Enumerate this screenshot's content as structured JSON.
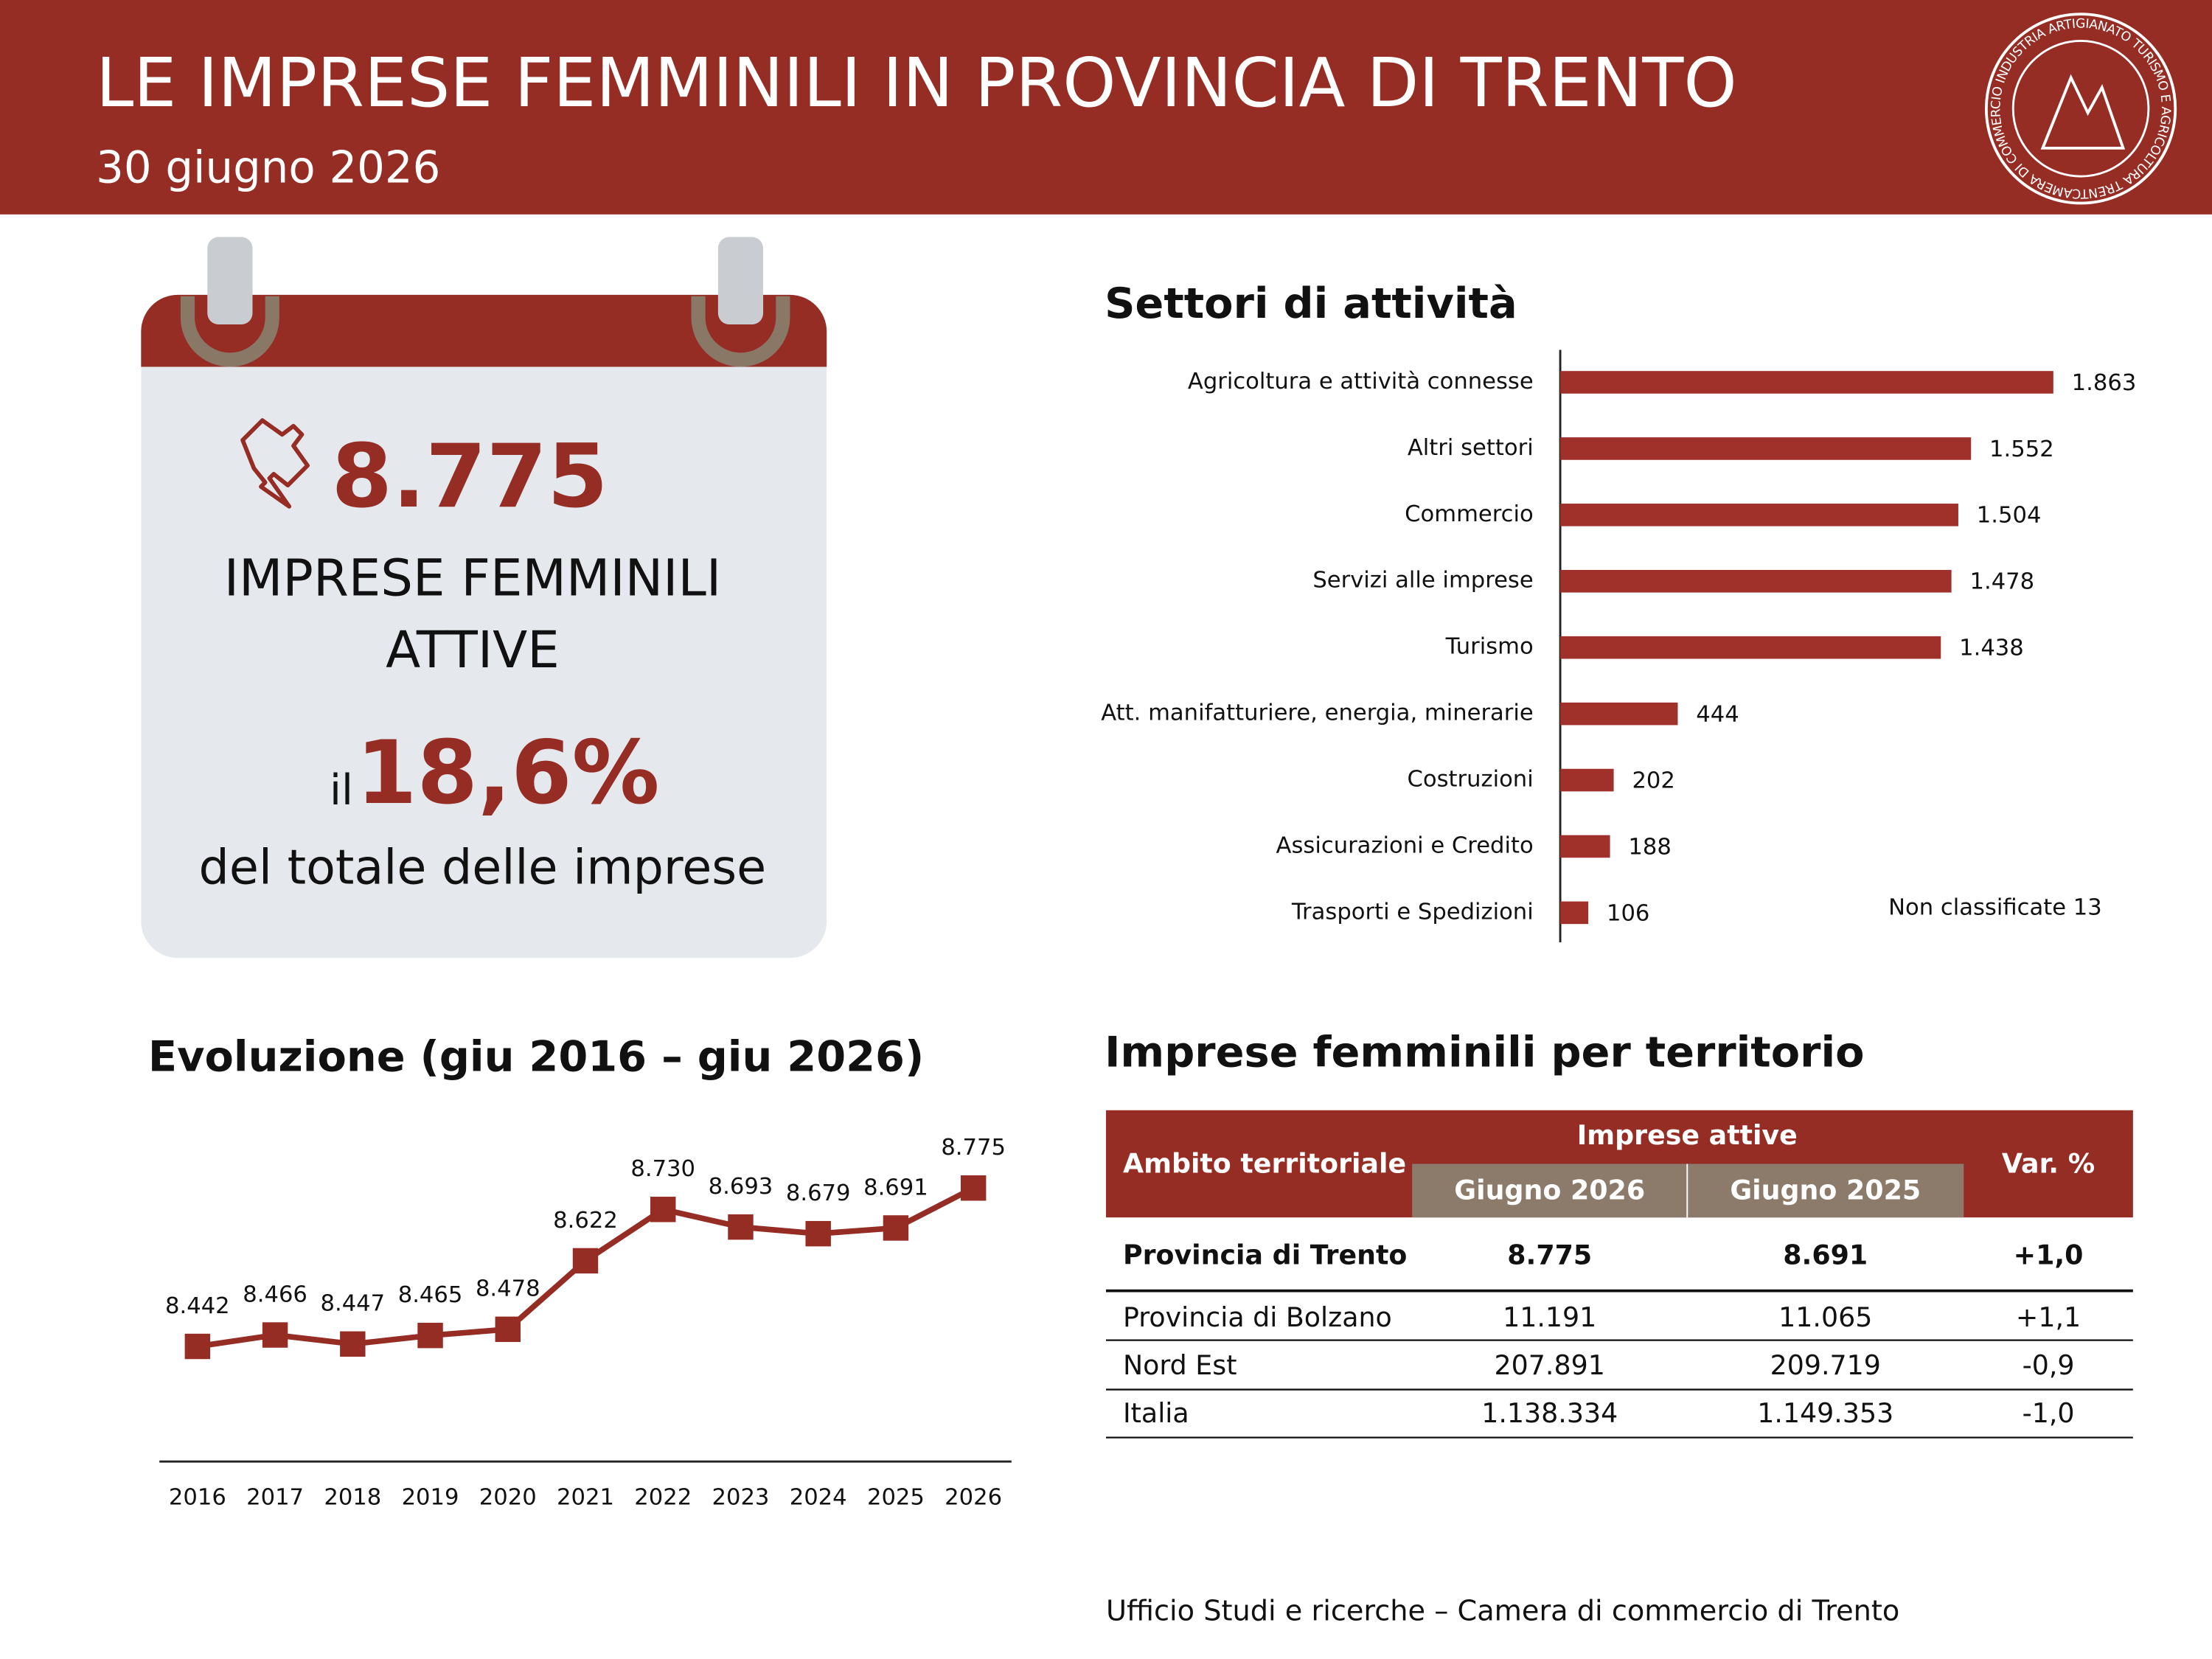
{
  "header": {
    "title": "LE IMPRESE FEMMINILI IN PROVINCIA DI TRENTO",
    "subtitle": "30 giugno 2026",
    "logo_text": "CAMERA DI COMMERCIO INDUSTRIA ARTIGIANATO TURISMO E AGRICOLTURA TRENTO"
  },
  "kpi": {
    "value": "8.775",
    "label_line1": "IMPRESE FEMMINILI",
    "label_line2": "ATTIVE",
    "prefix": "il",
    "share": "18,6%",
    "share_label": "del totale delle imprese"
  },
  "chart_data": [
    {
      "type": "hbar",
      "title": "Settori di attività",
      "categories": [
        "Agricoltura e attività connesse",
        "Altri settori",
        "Commercio",
        "Servizi alle imprese",
        "Turismo",
        "Att. manifatturiere, energia, minerarie",
        "Costruzioni",
        "Assicurazioni e Credito",
        "Trasporti e Spedizioni"
      ],
      "values": [
        1863,
        1552,
        1504,
        1478,
        1438,
        444,
        202,
        188,
        106
      ],
      "value_labels": [
        "1.863",
        "1.552",
        "1.504",
        "1.478",
        "1.438",
        "444",
        "202",
        "188",
        "106"
      ],
      "color": "#a0312a",
      "xlim": [
        0,
        2100
      ],
      "annotation": "Non classificate 13"
    },
    {
      "type": "line",
      "title": "Evoluzione (giu 2016 – giu 2026)",
      "categories": [
        "2016",
        "2017",
        "2018",
        "2019",
        "2020",
        "2021",
        "2022",
        "2023",
        "2024",
        "2025",
        "2026"
      ],
      "values": [
        8442,
        8466,
        8447,
        8465,
        8478,
        8622,
        8730,
        8693,
        8679,
        8691,
        8775
      ],
      "value_labels": [
        "8.442",
        "8.466",
        "8.447",
        "8.465",
        "8.478",
        "8.622",
        "8.730",
        "8.693",
        "8.679",
        "8.691",
        "8.775"
      ],
      "color": "#962d25",
      "ylim": [
        8200,
        8900
      ]
    }
  ],
  "table": {
    "title": "Imprese femminili per territorio",
    "header": {
      "first": "Ambito territoriale",
      "group": "Imprese attive",
      "sub": [
        "Giugno 2026",
        "Giugno 2025"
      ],
      "last": "Var. %"
    },
    "rows": [
      [
        "Provincia di Trento",
        "8.775",
        "8.691",
        "+1,0"
      ],
      [
        "Provincia di Bolzano",
        "11.191",
        "11.065",
        "+1,1"
      ],
      [
        "Nord Est",
        "207.891",
        "209.719",
        "-0,9"
      ],
      [
        "Italia",
        "1.138.334",
        "1.149.353",
        "-1,0"
      ]
    ]
  },
  "footer": "Ufficio Studi e ricerche – Camera di commercio di Trento"
}
